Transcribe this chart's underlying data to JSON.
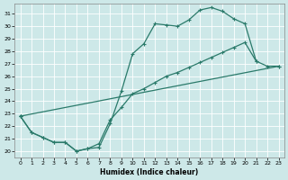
{
  "xlabel": "Humidex (Indice chaleur)",
  "background_color": "#cde8e8",
  "grid_color": "#b8d8d8",
  "line_color": "#2a7a6a",
  "xlim": [
    -0.5,
    23.5
  ],
  "ylim": [
    19.5,
    31.8
  ],
  "xticks": [
    0,
    1,
    2,
    3,
    4,
    5,
    6,
    7,
    8,
    9,
    10,
    11,
    12,
    13,
    14,
    15,
    16,
    17,
    18,
    19,
    20,
    21,
    22,
    23
  ],
  "yticks": [
    20,
    21,
    22,
    23,
    24,
    25,
    26,
    27,
    28,
    29,
    30,
    31
  ],
  "line1_x": [
    0,
    1,
    2,
    3,
    4,
    5,
    6,
    7,
    8,
    9,
    10,
    11,
    12,
    13,
    14,
    15,
    16,
    17,
    18,
    19,
    20,
    21
  ],
  "line1_y": [
    22.8,
    21.5,
    21.1,
    20.7,
    20.7,
    20.0,
    20.2,
    20.3,
    22.2,
    24.8,
    27.8,
    28.6,
    30.2,
    30.1,
    30.0,
    30.5,
    31.3,
    31.5,
    31.2,
    30.6,
    30.2,
    27.2
  ],
  "line2_x": [
    0,
    1,
    2,
    3,
    4,
    5,
    6,
    7,
    8,
    9,
    10,
    11,
    12,
    13,
    14,
    15,
    16,
    17,
    18,
    19,
    20,
    21,
    22,
    23
  ],
  "line2_y": [
    22.8,
    21.5,
    21.1,
    20.7,
    20.7,
    20.0,
    20.2,
    20.6,
    22.5,
    23.5,
    24.6,
    25.0,
    25.5,
    26.0,
    26.3,
    26.7,
    27.1,
    27.5,
    27.9,
    28.3,
    28.7,
    27.2,
    26.8,
    26.8
  ],
  "line3_x": [
    0,
    23
  ],
  "line3_y": [
    22.8,
    26.8
  ]
}
